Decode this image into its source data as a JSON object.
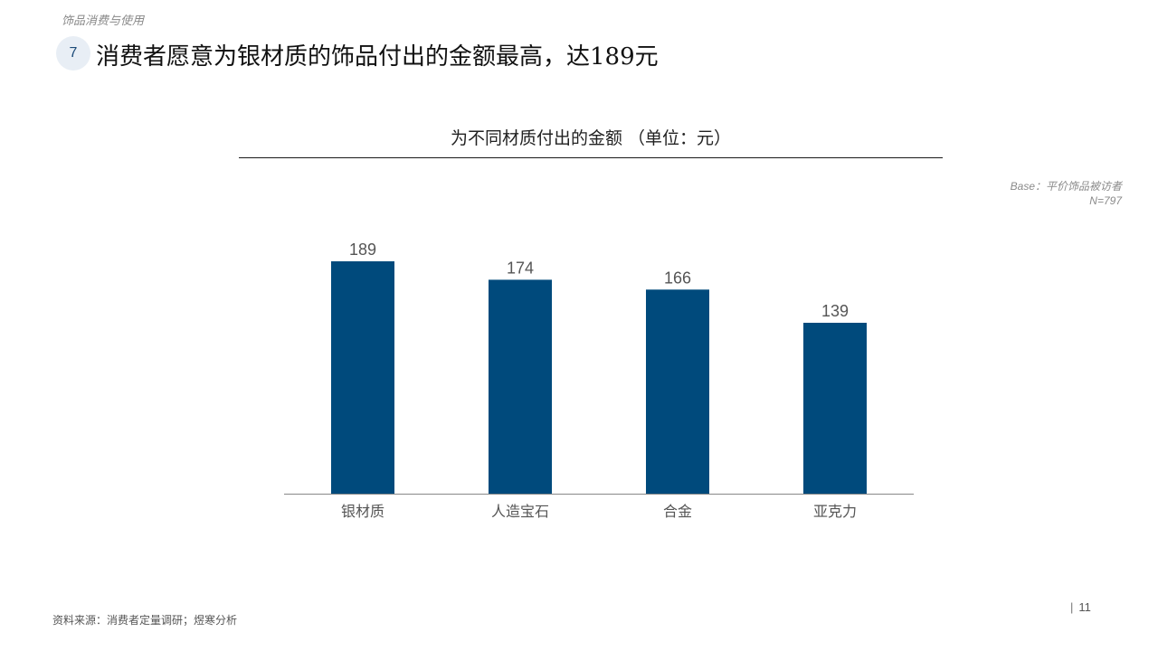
{
  "header": {
    "section_label": "饰品消费与使用",
    "number": "7",
    "headline": "消费者愿意为银材质的饰品付出的金额最高，达189元"
  },
  "base": {
    "line1": "Base：平价饰品被访者",
    "line2": "N=797"
  },
  "footer": {
    "source": "资料来源：消费者定量调研；煜寒分析",
    "page": "11"
  },
  "colors": {
    "bar": "#004a7c",
    "value_label": "#555555",
    "category_label": "#555555",
    "axis": "#888888"
  },
  "chart_data": {
    "type": "bar",
    "title": "为不同材质付出的金额 （单位：元）",
    "categories": [
      "银材质",
      "人造宝石",
      "合金",
      "亚克力"
    ],
    "values": [
      189,
      174,
      166,
      139
    ],
    "xlabel": "",
    "ylabel": "",
    "ylim": [
      0,
      189
    ],
    "grid": false,
    "data_labels": true
  }
}
